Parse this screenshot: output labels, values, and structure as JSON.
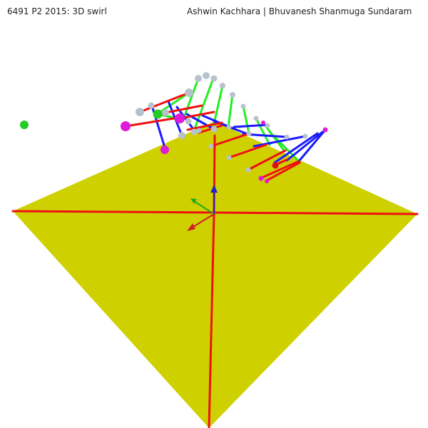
{
  "window": {
    "title": "6491 P2 2015: 3D swirl",
    "authors": "Ashwin Kachhara | Bhuvanesh Shanmuga Sundaram"
  },
  "colors": {
    "background": "#ffffff",
    "floor": "#cfd000",
    "floor_edge": "#b8b800",
    "axis_line": "#ee1111",
    "green_link": "#22ee22",
    "blue_link": "#1a1aff",
    "red_link": "#ee1111",
    "ball_gray": "#b8c2cc",
    "ball_magenta": "#e01ad8",
    "ball_green": "#22cc22",
    "ball_red": "#dd1111",
    "axis_x": "#cc2222",
    "axis_y": "#2222cc",
    "axis_z": "#22aa22"
  }
}
